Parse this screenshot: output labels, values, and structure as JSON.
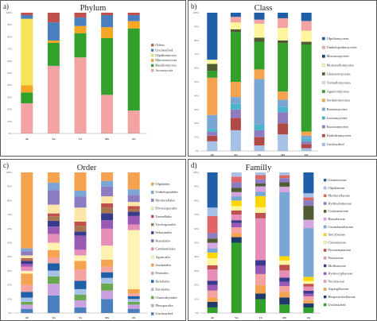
{
  "chart_data": [
    {
      "type": "bar",
      "stacked": true,
      "panel_label": "a)",
      "title": "Phylum",
      "categories": [
        "AF",
        "YA",
        "VS",
        "MS",
        "OS"
      ],
      "ylim": [
        0,
        100
      ],
      "yticks": [
        "0%",
        "10%",
        "20%",
        "30%",
        "40%",
        "50%",
        "60%",
        "70%",
        "80%",
        "90%",
        "100%"
      ],
      "legend_position": "right",
      "series": [
        {
          "name": "Ascomycota",
          "color": "#f4a3a3",
          "values": [
            25,
            56,
            63,
            32,
            19
          ]
        },
        {
          "name": "Basidiomycota",
          "color": "#33a02c",
          "values": [
            9,
            19,
            20,
            47,
            68
          ]
        },
        {
          "name": "Mucoromycota",
          "color": "#f5a623",
          "values": [
            6,
            2,
            6,
            9,
            6
          ]
        },
        {
          "name": "Olpidiomycota",
          "color": "#f7e35a",
          "values": [
            55,
            0,
            0,
            0,
            0
          ]
        },
        {
          "name": "Unclassified",
          "color": "#4a7fbf",
          "values": [
            3,
            15,
            7,
            10,
            5
          ]
        },
        {
          "name": "Others",
          "color": "#c0504d",
          "values": [
            2,
            8,
            4,
            2,
            2
          ]
        }
      ]
    },
    {
      "type": "bar",
      "stacked": true,
      "panel_label": "b)",
      "title": "Class",
      "categories": [
        "AF",
        "YA",
        "VS",
        "MS",
        "OS"
      ],
      "ylim": [
        0,
        100
      ],
      "yticks": [
        "0%",
        "10%",
        "20%",
        "30%",
        "40%",
        "50%",
        "60%",
        "70%",
        "80%",
        "90%",
        "100%"
      ],
      "legend_position": "right",
      "series": [
        {
          "name": "Unclassified",
          "color": "#a7c0e6",
          "values": [
            7,
            15,
            4,
            12,
            2
          ]
        },
        {
          "name": "Dothideomycetes",
          "color": "#b04a47",
          "values": [
            4,
            9,
            6,
            8,
            3
          ]
        },
        {
          "name": "Eurotiomycetes",
          "color": "#8e7cc3",
          "values": [
            3,
            6,
            5,
            8,
            2
          ]
        },
        {
          "name": "Leotiomycetes",
          "color": "#4ab5c9",
          "values": [
            2,
            4,
            4,
            4,
            2
          ]
        },
        {
          "name": "Pezizomycetes",
          "color": "#7aa6d6",
          "values": [
            10,
            5,
            33,
            5,
            2
          ]
        },
        {
          "name": "Sordariomycetes",
          "color": "#f5a34f",
          "values": [
            27,
            11,
            7,
            6,
            3
          ]
        },
        {
          "name": "Agaricomycetes",
          "color": "#33a02c",
          "values": [
            5,
            36,
            20,
            35,
            63
          ]
        },
        {
          "name": "Tremellomycetes",
          "color": "#dcdcdc",
          "values": [
            0,
            0,
            0,
            0,
            0
          ]
        },
        {
          "name": "Glomeromycetes",
          "color": "#4f5b32",
          "values": [
            5,
            2,
            3,
            2,
            2
          ]
        },
        {
          "name": "Mortierellomycetes",
          "color": "#fff59d",
          "values": [
            3,
            5,
            10,
            9,
            8
          ]
        },
        {
          "name": "Mucoromycetes",
          "color": "#1f3a68",
          "values": [
            0,
            0,
            0,
            0,
            0
          ]
        },
        {
          "name": "Umbelopsidomycetes",
          "color": "#f4a3a3",
          "values": [
            0,
            4,
            3,
            7,
            7
          ]
        },
        {
          "name": "Olpidiomycetes",
          "color": "#1f5fa8",
          "values": [
            34,
            3,
            5,
            4,
            6
          ]
        }
      ]
    },
    {
      "type": "bar",
      "stacked": true,
      "panel_label": "c)",
      "title": "Order",
      "categories": [
        "AF",
        "YA",
        "VS",
        "MS",
        "OS"
      ],
      "ylim": [
        0,
        100
      ],
      "yticks": [
        "0%",
        "10%",
        "20%",
        "30%",
        "40%",
        "50%",
        "60%",
        "70%",
        "80%",
        "90%",
        "100%"
      ],
      "legend_position": "right",
      "series": [
        {
          "name": "Unclassified",
          "color": "#4a7fbf",
          "values": [
            3,
            12,
            4,
            10,
            3
          ]
        },
        {
          "name": "Pleosporales",
          "color": "#c9a1e0",
          "values": [
            3,
            8,
            5,
            6,
            3
          ]
        },
        {
          "name": "Chaetothyriales",
          "color": "#6aa84f",
          "values": [
            2,
            5,
            4,
            5,
            2
          ]
        },
        {
          "name": "Eurotiales",
          "color": "#a7c0e6",
          "values": [
            3,
            4,
            4,
            4,
            2
          ]
        },
        {
          "name": "Helotiales",
          "color": "#1f5fa8",
          "values": [
            4,
            5,
            6,
            4,
            2
          ]
        },
        {
          "name": "Pezizales",
          "color": "#f4a3a3",
          "values": [
            5,
            4,
            8,
            4,
            2
          ]
        },
        {
          "name": "Sordariales",
          "color": "#f5a34f",
          "values": [
            8,
            5,
            6,
            5,
            3
          ]
        },
        {
          "name": "Agaricales",
          "color": "#fff2b3",
          "values": [
            2,
            5,
            4,
            10,
            42
          ]
        },
        {
          "name": "Cantharellales",
          "color": "#e58fb8",
          "values": [
            3,
            6,
            4,
            12,
            4
          ]
        },
        {
          "name": "Russulales",
          "color": "#9b59b6",
          "values": [
            2,
            5,
            10,
            6,
            6
          ]
        },
        {
          "name": "Sebacinales",
          "color": "#3a3a8c",
          "values": [
            2,
            4,
            3,
            5,
            3
          ]
        },
        {
          "name": "Trechisporales",
          "color": "#a6764f",
          "values": [
            1,
            3,
            4,
            4,
            2
          ]
        },
        {
          "name": "Tremellales",
          "color": "#c0504d",
          "values": [
            1,
            2,
            3,
            3,
            2
          ]
        },
        {
          "name": "Diversisporales",
          "color": "#fde7a8",
          "values": [
            2,
            6,
            10,
            5,
            3
          ]
        },
        {
          "name": "Mortierellales",
          "color": "#8e7cc3",
          "values": [
            3,
            10,
            8,
            7,
            5
          ]
        },
        {
          "name": "Umbelopsidales",
          "color": "#7aa6d6",
          "values": [
            2,
            5,
            4,
            4,
            4
          ]
        },
        {
          "name": "Olpidiales",
          "color": "#f5a34f",
          "values": [
            54,
            7,
            13,
            6,
            12
          ]
        }
      ]
    },
    {
      "type": "bar",
      "stacked": true,
      "panel_label": "d)",
      "title": "Familly",
      "categories": [
        "AF",
        "YA",
        "VS",
        "MS",
        "OS"
      ],
      "ylim": [
        0,
        100
      ],
      "yticks": [
        "0%",
        "10%",
        "20%",
        "30%",
        "40%",
        "50%",
        "60%",
        "70%",
        "80%",
        "90%",
        "100%"
      ],
      "legend_position": "right",
      "series": [
        {
          "name": "Unclassified",
          "color": "#33a02c",
          "values": [
            4,
            50,
            10,
            6,
            4
          ]
        },
        {
          "name": "Herpotrichiellaceae",
          "color": "#1f3a68",
          "values": [
            4,
            4,
            4,
            5,
            3
          ]
        },
        {
          "name": "Aspergillaceae",
          "color": "#f5a34f",
          "values": [
            3,
            3,
            6,
            4,
            2
          ]
        },
        {
          "name": "Nectriaceae",
          "color": "#f4a3a3",
          "values": [
            5,
            4,
            8,
            4,
            3
          ]
        },
        {
          "name": "Hyaloscyphaceae",
          "color": "#9b59b6",
          "values": [
            4,
            3,
            6,
            3,
            2
          ]
        },
        {
          "name": "Mollisiaceae",
          "color": "#3a3a8c",
          "values": [
            3,
            2,
            4,
            3,
            2
          ]
        },
        {
          "name": "Pezizaceae",
          "color": "#e58fb8",
          "values": [
            8,
            4,
            30,
            5,
            3
          ]
        },
        {
          "name": "Pyronemataceae",
          "color": "#c0504d",
          "values": [
            3,
            3,
            4,
            4,
            2
          ]
        },
        {
          "name": "Clavariaceae",
          "color": "#fff59d",
          "values": [
            5,
            3,
            4,
            3,
            2
          ]
        },
        {
          "name": "Inocybaceae",
          "color": "#ffd700",
          "values": [
            4,
            4,
            8,
            3,
            3
          ]
        },
        {
          "name": "Ceratobasidiaceae",
          "color": "#7aa6d6",
          "values": [
            3,
            3,
            3,
            45,
            35
          ]
        },
        {
          "name": "Russulaceae",
          "color": "#d5a6e0",
          "values": [
            4,
            3,
            4,
            4,
            6
          ]
        },
        {
          "name": "Cortinariaceae",
          "color": "#4f5b32",
          "values": [
            3,
            3,
            2,
            3,
            10
          ]
        },
        {
          "name": "Hydnodontaceae",
          "color": "#8e7cc3",
          "values": [
            4,
            4,
            3,
            3,
            4
          ]
        },
        {
          "name": "Mortierellaceae",
          "color": "#e06666",
          "values": [
            12,
            4,
            3,
            2,
            2
          ]
        },
        {
          "name": "Olpidiaceae",
          "color": "#a7c0e6",
          "values": [
            6,
            3,
            2,
            2,
            3
          ]
        },
        {
          "name": "Glomeraceae",
          "color": "#1f5fa8",
          "values": [
            25,
            0,
            0,
            0,
            15
          ]
        }
      ]
    }
  ]
}
